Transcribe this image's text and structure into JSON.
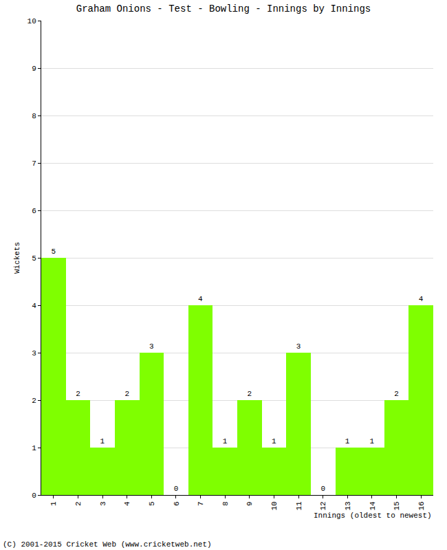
{
  "chart_data": {
    "type": "bar",
    "title": "Graham Onions - Test - Bowling - Innings by Innings",
    "x_label": "Innings (oldest to newest)",
    "y_label": "Wickets",
    "annotations": [
      "(C) 2001-2015 Cricket Web (www.cricketweb.net)"
    ],
    "categories": [
      "1",
      "2",
      "3",
      "4",
      "5",
      "6",
      "7",
      "8",
      "9",
      "10",
      "11",
      "12",
      "13",
      "14",
      "15",
      "16"
    ],
    "values": [
      5,
      2,
      1,
      2,
      3,
      0,
      4,
      1,
      2,
      1,
      3,
      0,
      1,
      1,
      2,
      4
    ],
    "color": "#7fff00",
    "ylim": [
      0,
      10
    ],
    "yticks": [
      0,
      1,
      2,
      3,
      4,
      5,
      6,
      7,
      8,
      9,
      10
    ],
    "grid": true,
    "data_labels": true
  }
}
